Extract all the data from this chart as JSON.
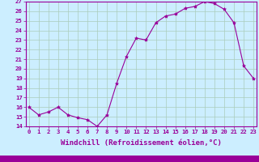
{
  "x": [
    0,
    1,
    2,
    3,
    4,
    5,
    6,
    7,
    8,
    9,
    10,
    11,
    12,
    13,
    14,
    15,
    16,
    17,
    18,
    19,
    20,
    21,
    22,
    23
  ],
  "y": [
    16.0,
    15.2,
    15.5,
    16.0,
    15.2,
    14.9,
    14.7,
    14.0,
    15.2,
    18.5,
    21.3,
    23.2,
    23.0,
    24.8,
    25.5,
    25.7,
    26.3,
    26.5,
    27.0,
    26.8,
    26.2,
    24.8,
    20.3,
    19.0
  ],
  "ylim": [
    14,
    27
  ],
  "xlim": [
    -0.3,
    23.3
  ],
  "yticks": [
    14,
    15,
    16,
    17,
    18,
    19,
    20,
    21,
    22,
    23,
    24,
    25,
    26,
    27
  ],
  "xticks": [
    0,
    1,
    2,
    3,
    4,
    5,
    6,
    7,
    8,
    9,
    10,
    11,
    12,
    13,
    14,
    15,
    16,
    17,
    18,
    19,
    20,
    21,
    22,
    23
  ],
  "line_color": "#990099",
  "marker": "*",
  "marker_size": 3,
  "bg_color": "#cceeff",
  "grid_color": "#aaccbb",
  "xlabel": "Windchill (Refroidissement éolien,°C)",
  "xlabel_color": "#990099",
  "xlabel_fontsize": 6.5,
  "tick_fontsize": 5.2,
  "tick_color": "#990099",
  "fig_bg": "#cceeff",
  "spine_color": "#990099",
  "bottom_bar_color": "#990099"
}
